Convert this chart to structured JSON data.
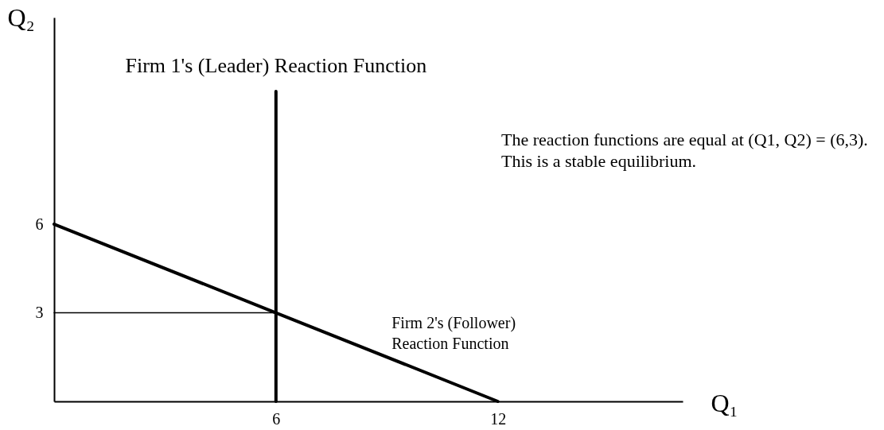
{
  "chart_data": {
    "type": "line",
    "xlabel": "Q₁",
    "ylabel": "Q₂",
    "series": [
      {
        "color": "#000000",
        "x": [
          6,
          6
        ],
        "values": [
          0,
          10.5
        ]
      },
      {
        "color": "#000000",
        "x": [
          0,
          6,
          12
        ],
        "values": [
          6,
          3,
          0
        ]
      },
      {
        "color": "#000000",
        "x": [
          0,
          6
        ],
        "values": [
          3,
          3
        ]
      }
    ],
    "xlim": [
      0,
      17
    ],
    "ylim": [
      0,
      13
    ],
    "xticks": [
      6,
      12
    ],
    "yticks": [
      3,
      6
    ],
    "grid": false,
    "marker": "none",
    "line_style": "solid",
    "annotations": [
      {
        "text": "Firm 1's (Leader) Reaction Function",
        "x": 6,
        "y": 10.5
      },
      {
        "text": "Firm 2's (Follower)\nReaction Function",
        "x": 9,
        "y": 1.5
      },
      "The reaction functions are equal at (Q1, Q2) = (6,3).\nThis is a stable equilibrium."
    ]
  }
}
